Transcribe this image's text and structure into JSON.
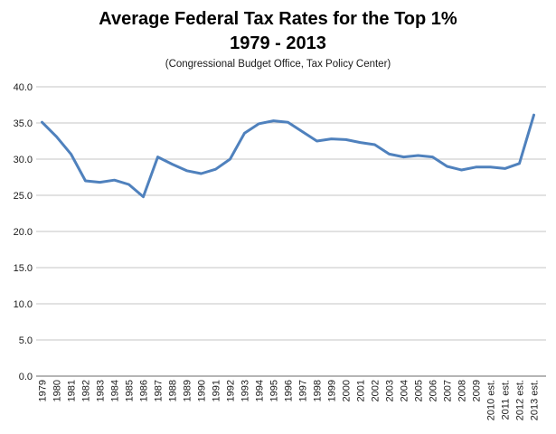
{
  "header": {
    "title_line1": "Average Federal Tax Rates for the Top 1%",
    "title_line2": "1979 - 2013",
    "subtitle": "(Congressional Budget Office, Tax Policy Center)"
  },
  "chart_data": {
    "type": "line",
    "title": "Average Federal Tax Rates for the Top 1% 1979 - 2013",
    "subtitle": "(Congressional Budget Office, Tax Policy Center)",
    "categories": [
      "1979",
      "1980",
      "1981",
      "1982",
      "1983",
      "1984",
      "1985",
      "1986",
      "1987",
      "1988",
      "1989",
      "1990",
      "1991",
      "1992",
      "1993",
      "1994",
      "1995",
      "1996",
      "1997",
      "1998",
      "1999",
      "2000",
      "2001",
      "2002",
      "2003",
      "2004",
      "2005",
      "2006",
      "2007",
      "2008",
      "2009",
      "2010 est.",
      "2011 est.",
      "2012 est.",
      "2013 est."
    ],
    "values": [
      35.1,
      33.1,
      30.7,
      27.0,
      26.8,
      27.1,
      26.5,
      24.8,
      30.3,
      29.3,
      28.4,
      28.0,
      28.6,
      30.0,
      33.6,
      34.9,
      35.3,
      35.1,
      33.8,
      32.5,
      32.8,
      32.7,
      32.3,
      32.0,
      30.7,
      30.3,
      30.5,
      30.3,
      29.0,
      28.5,
      28.9,
      28.9,
      28.7,
      29.4,
      36.1
    ],
    "series_name": "Average federal tax rate, top 1%",
    "xlabel": "",
    "ylabel": "",
    "ylim": [
      0.0,
      40.0
    ],
    "y_tick_step": 5.0,
    "y_ticks": [
      "0.0",
      "5.0",
      "10.0",
      "15.0",
      "20.0",
      "25.0",
      "30.0",
      "35.0",
      "40.0"
    ],
    "grid": "horizontal",
    "legend": "none",
    "colors": {
      "line": "#4F81BD",
      "gridline": "#C6C6C6",
      "axis_line": "#898989",
      "tick_text": "#1b1b1b",
      "background": "#ffffff"
    }
  }
}
